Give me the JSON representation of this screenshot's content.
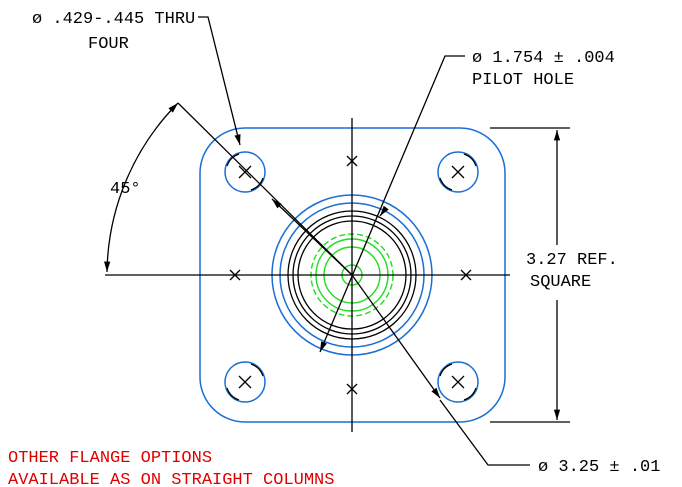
{
  "labels": {
    "hole_spec": "ø .429-.445 THRU",
    "hole_count": "FOUR",
    "pilot_spec": "ø 1.754 ± .004",
    "pilot_name": "PILOT HOLE",
    "angle": "45°",
    "square_dim": "3.27 REF.",
    "square_word": "SQUARE",
    "bolt_circle": "ø 3.25 ± .01"
  },
  "note": {
    "line1": "OTHER FLANGE OPTIONS",
    "line2": "AVAILABLE AS ON STRAIGHT COLUMNS"
  }
}
